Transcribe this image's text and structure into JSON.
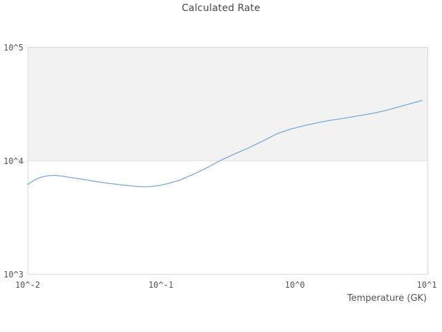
{
  "title": "Calculated Rate",
  "colors": {
    "line": "#76a9de",
    "band": "#f2f2f2",
    "plot_border": "#d9d9d9",
    "gridline": "#e3e3e3",
    "title_text": "#4a4a4a",
    "tick_text": "#555555",
    "background": "#ffffff"
  },
  "chart_data": {
    "type": "line",
    "title": "Calculated Rate",
    "xlabel": "Temperature (GK)",
    "ylabel": "",
    "x_scale": "log",
    "y_scale": "log",
    "xlim": [
      0.01,
      10
    ],
    "ylim": [
      1000,
      100000
    ],
    "x_ticks": [
      0.01,
      0.1,
      1,
      10
    ],
    "x_tick_labels": [
      "10^-2",
      "10^-1",
      "10^0",
      "10^1"
    ],
    "y_ticks": [
      1000,
      10000,
      100000
    ],
    "y_tick_labels": [
      "10^3",
      "10^4",
      "10^5"
    ],
    "legend": "none",
    "grid": "horizontal shaded decade band",
    "shaded_band_y": [
      10000,
      100000
    ],
    "series": [
      {
        "name": "calculated-rate",
        "x": [
          0.01,
          0.0113,
          0.0127,
          0.0143,
          0.016,
          0.018,
          0.02,
          0.026,
          0.033,
          0.042,
          0.053,
          0.067,
          0.08,
          0.096,
          0.115,
          0.137,
          0.174,
          0.221,
          0.274,
          0.356,
          0.452,
          0.575,
          0.73,
          0.93,
          1.18,
          1.5,
          1.9,
          2.4,
          3.1,
          3.9,
          5.0,
          6.3,
          7.5,
          9.0
        ],
        "values": [
          6200,
          6800,
          7200,
          7400,
          7450,
          7350,
          7200,
          6870,
          6550,
          6300,
          6100,
          5950,
          5920,
          6050,
          6350,
          6750,
          7600,
          8700,
          10000,
          11500,
          13000,
          14900,
          17200,
          19000,
          20400,
          21700,
          22800,
          23800,
          25000,
          26200,
          28000,
          30200,
          32000,
          33900
        ]
      }
    ]
  }
}
